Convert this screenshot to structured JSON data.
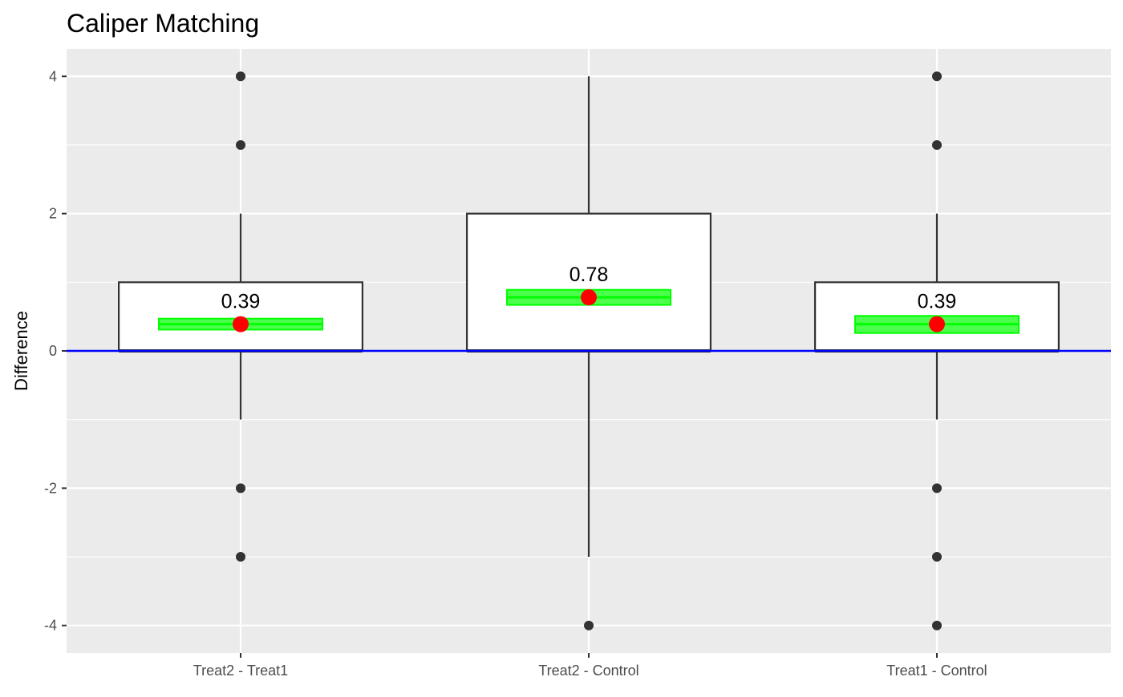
{
  "chart_data": {
    "type": "boxplot",
    "title": "Caliper Matching",
    "xlabel": "",
    "ylabel": "Difference",
    "ylim": [
      -4.4,
      4.4
    ],
    "yticks": [
      -4,
      -2,
      0,
      2,
      4
    ],
    "ytick_labels": [
      "-4",
      "-2",
      "0",
      "2",
      "4"
    ],
    "grid": true,
    "reference_line": {
      "y": 0,
      "color": "#0000ff"
    },
    "categories": [
      "Treat2 - Treat1",
      "Treat2 - Control",
      "Treat1 - Control"
    ],
    "boxes": [
      {
        "category": "Treat2 - Treat1",
        "q1": 0,
        "median": 0,
        "q3": 1,
        "whisker_low": -1,
        "whisker_high": 2,
        "outliers": [
          4,
          3,
          -2,
          -3
        ],
        "mean": 0.39,
        "mean_label": "0.39",
        "ci": [
          0.31,
          0.47
        ]
      },
      {
        "category": "Treat2 - Control",
        "q1": 0,
        "median": 0,
        "q3": 2,
        "whisker_low": -3,
        "whisker_high": 4,
        "outliers": [
          -4
        ],
        "mean": 0.78,
        "mean_label": "0.78",
        "ci": [
          0.67,
          0.89
        ]
      },
      {
        "category": "Treat1 - Control",
        "q1": 0,
        "median": 0,
        "q3": 1,
        "whisker_low": -1,
        "whisker_high": 2,
        "outliers": [
          4,
          3,
          -2,
          -3,
          -4
        ],
        "mean": 0.39,
        "mean_label": "0.39",
        "ci": [
          0.26,
          0.51
        ]
      }
    ],
    "colors": {
      "panel_background": "#ebebeb",
      "grid": "#ffffff",
      "box_fill": "#ffffff",
      "box_stroke": "#333333",
      "outlier": "#333333",
      "ci_fill": "#00ff00",
      "mean_point": "#ff0000",
      "reference_line": "#0000ff"
    }
  }
}
